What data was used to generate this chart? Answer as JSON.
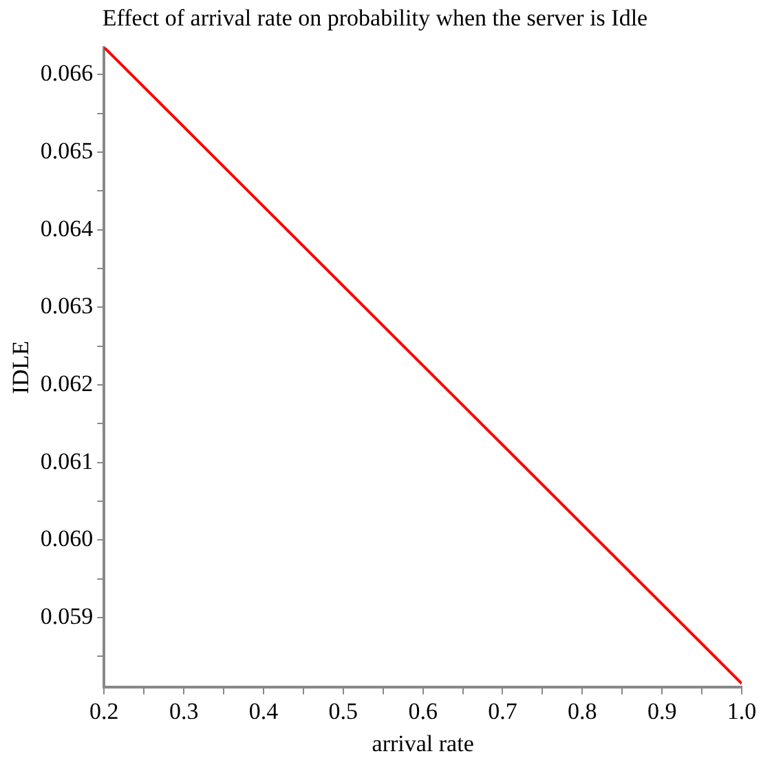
{
  "chart_data": {
    "type": "line",
    "title": "Effect of arrival rate on probability when the server is Idle",
    "xlabel": "arrival rate",
    "ylabel": "IDLE",
    "x": [
      0.2,
      1.0
    ],
    "series": [
      {
        "color": "#ff0000",
        "values": [
          0.06635,
          0.05815
        ]
      }
    ],
    "xlim": [
      0.2,
      1.0
    ],
    "xticks": [
      0.2,
      {
        "value": 0.25,
        "label": null
      },
      0.3,
      {
        "value": 0.35,
        "label": null
      },
      0.4,
      {
        "value": 0.45,
        "label": null
      },
      0.5,
      {
        "value": 0.55,
        "label": null
      },
      0.6,
      {
        "value": 0.65,
        "label": null
      },
      0.7,
      {
        "value": 0.75,
        "label": null
      },
      0.8,
      {
        "value": 0.85,
        "label": null
      },
      0.9,
      {
        "value": 0.95,
        "label": null
      },
      {
        "value": 1.0,
        "label": "1.0"
      }
    ],
    "ylim": [
      0.0581,
      0.06635
    ],
    "yticks": [
      {
        "value": 0.0585,
        "label": null
      },
      0.059,
      {
        "value": 0.0595,
        "label": null
      },
      {
        "value": 0.06,
        "label": "0.060"
      },
      {
        "value": 0.0605,
        "label": null
      },
      0.061,
      {
        "value": 0.0615,
        "label": null
      },
      0.062,
      {
        "value": 0.0625,
        "label": null
      },
      0.063,
      {
        "value": 0.0635,
        "label": null
      },
      0.064,
      {
        "value": 0.0645,
        "label": null
      },
      0.065,
      {
        "value": 0.0655,
        "label": null
      },
      0.066
    ],
    "grid": false,
    "legend": false,
    "marker": "none",
    "line_style": "solid"
  }
}
